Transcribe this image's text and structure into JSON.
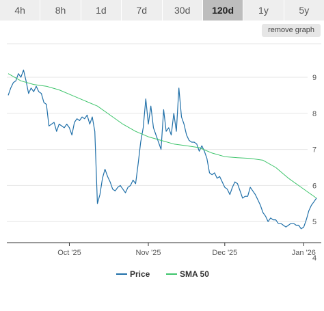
{
  "range_tabs": [
    {
      "label": "4h",
      "active": false
    },
    {
      "label": "8h",
      "active": false
    },
    {
      "label": "1d",
      "active": false
    },
    {
      "label": "7d",
      "active": false
    },
    {
      "label": "30d",
      "active": false
    },
    {
      "label": "120d",
      "active": true
    },
    {
      "label": "1y",
      "active": false
    },
    {
      "label": "5y",
      "active": false
    }
  ],
  "remove_graph_label": "remove graph",
  "colors": {
    "price": "#1f6fa8",
    "sma": "#3cc46a",
    "grid": "#e5e5e5",
    "axis": "#333333"
  },
  "chart_data": {
    "type": "line",
    "x_range": [
      "2025-09-07",
      "2026-01-06"
    ],
    "ylim": [
      4,
      9.5
    ],
    "y_ticks": [
      4,
      5,
      6,
      7,
      8,
      9
    ],
    "x_ticks": [
      {
        "date": "2025-10-01",
        "label": "Oct '25"
      },
      {
        "date": "2025-11-01",
        "label": "Nov '25"
      },
      {
        "date": "2025-12-01",
        "label": "Dec '25"
      },
      {
        "date": "2026-01-01",
        "label": "Jan '26"
      }
    ],
    "series": [
      {
        "name": "Price",
        "color": "#1f6fa8",
        "points": [
          [
            "2025-09-07",
            8.5
          ],
          [
            "2025-09-08",
            8.7
          ],
          [
            "2025-09-09",
            8.85
          ],
          [
            "2025-09-10",
            8.9
          ],
          [
            "2025-09-11",
            9.1
          ],
          [
            "2025-09-12",
            9.0
          ],
          [
            "2025-09-13",
            9.2
          ],
          [
            "2025-09-14",
            8.9
          ],
          [
            "2025-09-15",
            8.55
          ],
          [
            "2025-09-16",
            8.7
          ],
          [
            "2025-09-17",
            8.6
          ],
          [
            "2025-09-18",
            8.75
          ],
          [
            "2025-09-19",
            8.6
          ],
          [
            "2025-09-20",
            8.55
          ],
          [
            "2025-09-21",
            8.3
          ],
          [
            "2025-09-22",
            8.25
          ],
          [
            "2025-09-23",
            7.65
          ],
          [
            "2025-09-24",
            7.7
          ],
          [
            "2025-09-25",
            7.75
          ],
          [
            "2025-09-26",
            7.5
          ],
          [
            "2025-09-27",
            7.7
          ],
          [
            "2025-09-28",
            7.65
          ],
          [
            "2025-09-29",
            7.6
          ],
          [
            "2025-09-30",
            7.7
          ],
          [
            "2025-10-01",
            7.6
          ],
          [
            "2025-10-02",
            7.4
          ],
          [
            "2025-10-03",
            7.75
          ],
          [
            "2025-10-04",
            7.85
          ],
          [
            "2025-10-05",
            7.8
          ],
          [
            "2025-10-06",
            7.9
          ],
          [
            "2025-10-07",
            7.85
          ],
          [
            "2025-10-08",
            7.95
          ],
          [
            "2025-10-09",
            7.7
          ],
          [
            "2025-10-10",
            7.9
          ],
          [
            "2025-10-11",
            7.5
          ],
          [
            "2025-10-12",
            5.5
          ],
          [
            "2025-10-13",
            5.75
          ],
          [
            "2025-10-14",
            6.2
          ],
          [
            "2025-10-15",
            6.45
          ],
          [
            "2025-10-16",
            6.25
          ],
          [
            "2025-10-17",
            6.1
          ],
          [
            "2025-10-18",
            5.9
          ],
          [
            "2025-10-19",
            5.85
          ],
          [
            "2025-10-20",
            5.95
          ],
          [
            "2025-10-21",
            6.0
          ],
          [
            "2025-10-22",
            5.9
          ],
          [
            "2025-10-23",
            5.8
          ],
          [
            "2025-10-24",
            5.95
          ],
          [
            "2025-10-25",
            6.0
          ],
          [
            "2025-10-26",
            6.15
          ],
          [
            "2025-10-27",
            6.05
          ],
          [
            "2025-10-28",
            6.6
          ],
          [
            "2025-10-29",
            7.2
          ],
          [
            "2025-10-30",
            7.6
          ],
          [
            "2025-10-31",
            8.4
          ],
          [
            "2025-11-01",
            7.7
          ],
          [
            "2025-11-02",
            8.2
          ],
          [
            "2025-11-03",
            7.6
          ],
          [
            "2025-11-04",
            7.4
          ],
          [
            "2025-11-05",
            7.2
          ],
          [
            "2025-11-06",
            7.0
          ],
          [
            "2025-11-07",
            8.1
          ],
          [
            "2025-11-08",
            7.5
          ],
          [
            "2025-11-09",
            7.6
          ],
          [
            "2025-11-10",
            7.4
          ],
          [
            "2025-11-11",
            8.0
          ],
          [
            "2025-11-12",
            7.5
          ],
          [
            "2025-11-13",
            8.7
          ],
          [
            "2025-11-14",
            7.9
          ],
          [
            "2025-11-15",
            7.7
          ],
          [
            "2025-11-16",
            7.4
          ],
          [
            "2025-11-17",
            7.25
          ],
          [
            "2025-11-18",
            7.2
          ],
          [
            "2025-11-19",
            7.2
          ],
          [
            "2025-11-20",
            7.15
          ],
          [
            "2025-11-21",
            6.95
          ],
          [
            "2025-11-22",
            7.1
          ],
          [
            "2025-11-23",
            6.95
          ],
          [
            "2025-11-24",
            6.75
          ],
          [
            "2025-11-25",
            6.35
          ],
          [
            "2025-11-26",
            6.3
          ],
          [
            "2025-11-27",
            6.35
          ],
          [
            "2025-11-28",
            6.2
          ],
          [
            "2025-11-29",
            6.25
          ],
          [
            "2025-11-30",
            6.1
          ],
          [
            "2025-12-01",
            5.95
          ],
          [
            "2025-12-02",
            5.9
          ],
          [
            "2025-12-03",
            5.75
          ],
          [
            "2025-12-04",
            5.95
          ],
          [
            "2025-12-05",
            6.1
          ],
          [
            "2025-12-06",
            6.05
          ],
          [
            "2025-12-07",
            5.85
          ],
          [
            "2025-12-08",
            5.65
          ],
          [
            "2025-12-09",
            5.7
          ],
          [
            "2025-12-10",
            5.7
          ],
          [
            "2025-12-11",
            5.95
          ],
          [
            "2025-12-12",
            5.85
          ],
          [
            "2025-12-13",
            5.75
          ],
          [
            "2025-12-14",
            5.6
          ],
          [
            "2025-12-15",
            5.45
          ],
          [
            "2025-12-16",
            5.25
          ],
          [
            "2025-12-17",
            5.15
          ],
          [
            "2025-12-18",
            5.0
          ],
          [
            "2025-12-19",
            5.1
          ],
          [
            "2025-12-20",
            5.05
          ],
          [
            "2025-12-21",
            5.05
          ],
          [
            "2025-12-22",
            4.95
          ],
          [
            "2025-12-23",
            4.95
          ],
          [
            "2025-12-24",
            4.9
          ],
          [
            "2025-12-25",
            4.85
          ],
          [
            "2025-12-26",
            4.9
          ],
          [
            "2025-12-27",
            4.95
          ],
          [
            "2025-12-28",
            4.95
          ],
          [
            "2025-12-29",
            4.9
          ],
          [
            "2025-12-30",
            4.9
          ],
          [
            "2025-12-31",
            4.8
          ],
          [
            "2026-01-01",
            4.85
          ],
          [
            "2026-01-02",
            5.05
          ],
          [
            "2026-01-03",
            5.3
          ],
          [
            "2026-01-04",
            5.45
          ],
          [
            "2026-01-05",
            5.55
          ],
          [
            "2026-01-06",
            5.65
          ]
        ]
      },
      {
        "name": "SMA 50",
        "color": "#3cc46a",
        "points": [
          [
            "2025-09-07",
            9.1
          ],
          [
            "2025-09-12",
            8.9
          ],
          [
            "2025-09-17",
            8.8
          ],
          [
            "2025-09-22",
            8.75
          ],
          [
            "2025-09-27",
            8.65
          ],
          [
            "2025-10-02",
            8.5
          ],
          [
            "2025-10-07",
            8.35
          ],
          [
            "2025-10-12",
            8.2
          ],
          [
            "2025-10-17",
            7.95
          ],
          [
            "2025-10-22",
            7.7
          ],
          [
            "2025-10-27",
            7.5
          ],
          [
            "2025-11-01",
            7.35
          ],
          [
            "2025-11-06",
            7.25
          ],
          [
            "2025-11-11",
            7.15
          ],
          [
            "2025-11-16",
            7.1
          ],
          [
            "2025-11-21",
            7.05
          ],
          [
            "2025-11-26",
            6.9
          ],
          [
            "2025-12-01",
            6.8
          ],
          [
            "2025-12-06",
            6.77
          ],
          [
            "2025-12-11",
            6.75
          ],
          [
            "2025-12-16",
            6.7
          ],
          [
            "2025-12-21",
            6.5
          ],
          [
            "2025-12-26",
            6.2
          ],
          [
            "2025-12-31",
            5.95
          ],
          [
            "2026-01-03",
            5.8
          ],
          [
            "2026-01-06",
            5.65
          ]
        ]
      }
    ],
    "legend": [
      "Price",
      "SMA 50"
    ],
    "legend_position": "bottom-center",
    "grid": true
  }
}
